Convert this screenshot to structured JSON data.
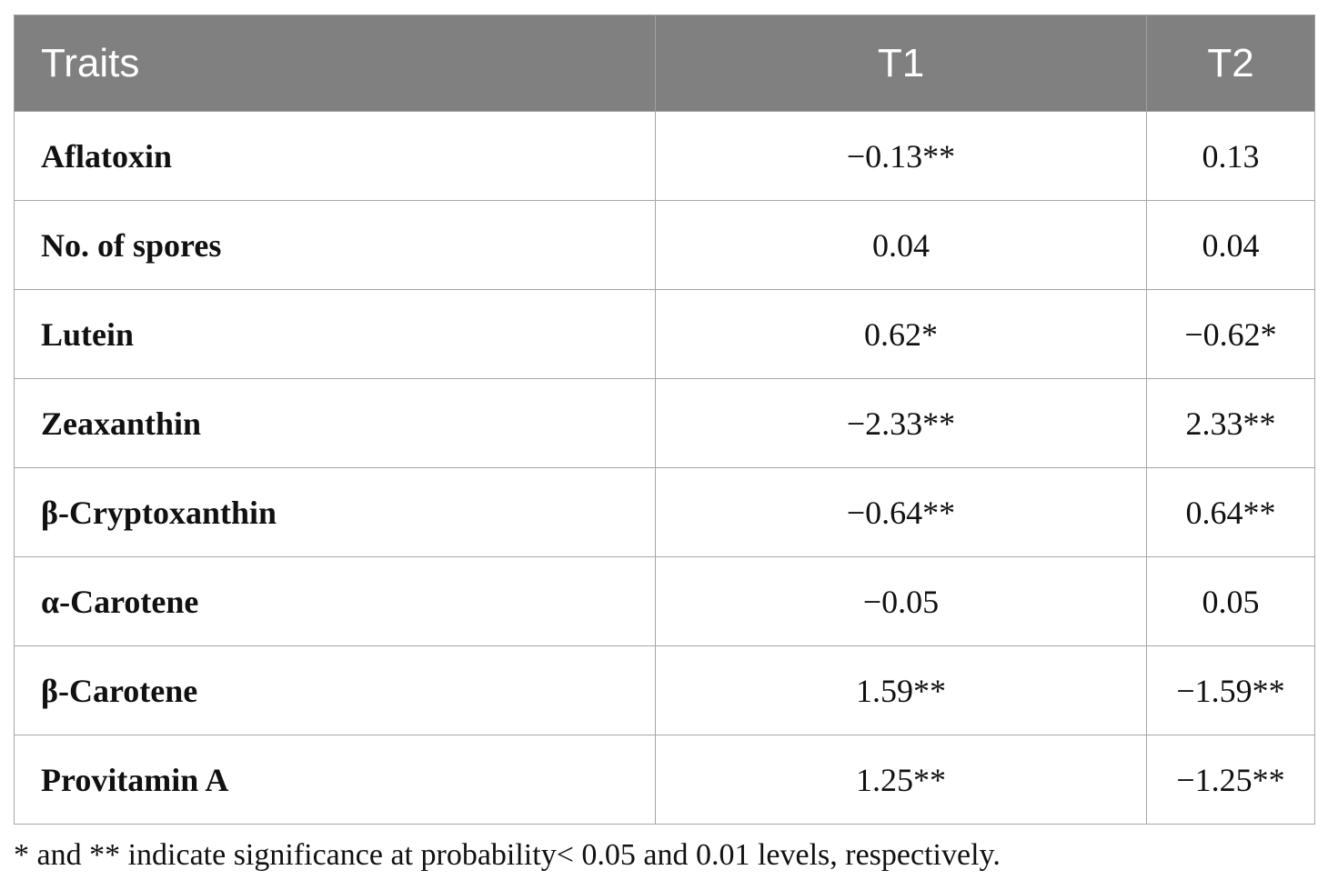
{
  "table": {
    "headers": [
      "Traits",
      "T1",
      "T2"
    ],
    "rows": [
      {
        "trait": "Aflatoxin",
        "t1": "−0.13**",
        "t2": "0.13"
      },
      {
        "trait": "No. of spores",
        "t1": "0.04",
        "t2": "0.04"
      },
      {
        "trait": "Lutein",
        "t1": "0.62*",
        "t2": "−0.62*"
      },
      {
        "trait": "Zeaxanthin",
        "t1": "−2.33**",
        "t2": "2.33**"
      },
      {
        "trait": "β-Cryptoxanthin",
        "t1": "−0.64**",
        "t2": "0.64**"
      },
      {
        "trait": "α-Carotene",
        "t1": "−0.05",
        "t2": "0.05"
      },
      {
        "trait": "β-Carotene",
        "t1": "1.59**",
        "t2": "−1.59**"
      },
      {
        "trait": "Provitamin A",
        "t1": "1.25**",
        "t2": "−1.25**"
      }
    ]
  },
  "footnote": "* and ** indicate significance at probability< 0.05 and 0.01 levels, respectively.",
  "colors": {
    "header_bg": "#808080",
    "header_text": "#ffffff",
    "border": "#a6a6a6"
  }
}
